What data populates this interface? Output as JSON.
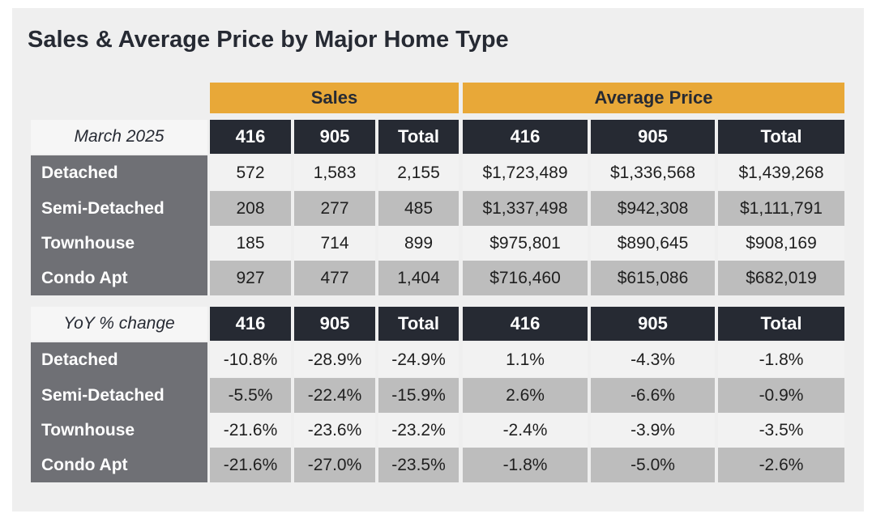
{
  "title": "Sales & Average Price by Major Home Type",
  "group_headers": {
    "sales": "Sales",
    "avg_price": "Average Price"
  },
  "columns": [
    "416",
    "905",
    "Total",
    "416",
    "905",
    "Total"
  ],
  "sections": [
    {
      "label": "March 2025",
      "rows": [
        {
          "name": "Detached",
          "values": [
            "572",
            "1,583",
            "2,155",
            "$1,723,489",
            "$1,336,568",
            "$1,439,268"
          ]
        },
        {
          "name": "Semi-Detached",
          "values": [
            "208",
            "277",
            "485",
            "$1,337,498",
            "$942,308",
            "$1,111,791"
          ]
        },
        {
          "name": "Townhouse",
          "values": [
            "185",
            "714",
            "899",
            "$975,801",
            "$890,645",
            "$908,169"
          ]
        },
        {
          "name": "Condo Apt",
          "values": [
            "927",
            "477",
            "1,404",
            "$716,460",
            "$615,086",
            "$682,019"
          ]
        }
      ]
    },
    {
      "label": "YoY % change",
      "rows": [
        {
          "name": "Detached",
          "values": [
            "-10.8%",
            "-28.9%",
            "-24.9%",
            "1.1%",
            "-4.3%",
            "-1.8%"
          ]
        },
        {
          "name": "Semi-Detached",
          "values": [
            "-5.5%",
            "-22.4%",
            "-15.9%",
            "2.6%",
            "-6.6%",
            "-0.9%"
          ]
        },
        {
          "name": "Townhouse",
          "values": [
            "-21.6%",
            "-23.6%",
            "-23.2%",
            "-2.4%",
            "-3.9%",
            "-3.5%"
          ]
        },
        {
          "name": "Condo Apt",
          "values": [
            "-21.6%",
            "-27.0%",
            "-23.5%",
            "-1.8%",
            "-5.0%",
            "-2.6%"
          ]
        }
      ]
    }
  ]
}
